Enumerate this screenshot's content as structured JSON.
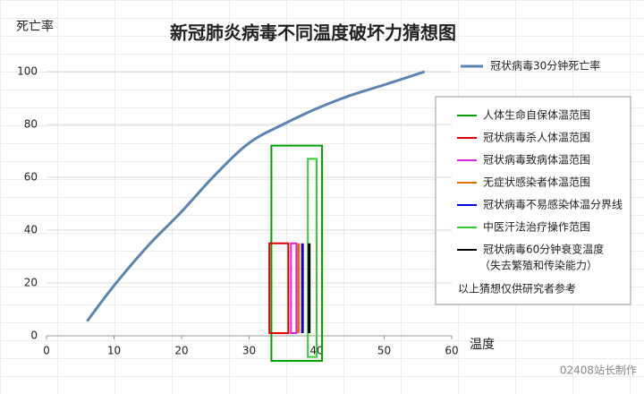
{
  "chart_data": {
    "type": "line",
    "title": "新冠肺炎病毒不同温度破坏力猜想图",
    "y_label": "死亡率",
    "x_label": "温度",
    "watermark": "02408站长制作",
    "note": "以上猜想仅供研究者参考",
    "xlim": [
      0,
      60
    ],
    "xticks": [
      0,
      10,
      20,
      30,
      40,
      50,
      60
    ],
    "ylim": [
      0,
      100
    ],
    "yticks": [
      0,
      20,
      40,
      60,
      80,
      100
    ],
    "grid": true,
    "series": [
      {
        "name": "冠状病毒30分钟死亡率",
        "color": "#5b84b1",
        "x": [
          6,
          10,
          15,
          20,
          25,
          30,
          35,
          40,
          45,
          50,
          56
        ],
        "values": [
          5.5,
          19,
          34,
          47,
          61,
          73,
          80,
          86,
          91,
          95,
          100
        ]
      }
    ],
    "ranges": [
      {
        "name": "人体生命自保体温范围",
        "color": "#00a000",
        "x": [
          33.3,
          40.8
        ],
        "y": [
          -9.5,
          72
        ]
      },
      {
        "name": "冠状病毒杀人体温范围",
        "color": "#e00000",
        "x": [
          33,
          35.8
        ],
        "y": [
          1,
          35
        ]
      },
      {
        "name": "冠状病毒致病体温范围",
        "color": "#e020e0",
        "x": [
          36.2,
          37
        ],
        "y": [
          1,
          35
        ]
      },
      {
        "name": "无症状感染者体温范围",
        "color": "#e07000",
        "x": 37.3,
        "y": [
          1,
          35
        ]
      },
      {
        "name": "冠状病毒不易感染体温分界线",
        "color": "#0000e0",
        "x": 37.9,
        "y": [
          1,
          35
        ]
      },
      {
        "name": "中医汗法治疗操作范围",
        "color": "#30d030",
        "x": [
          38.7,
          40
        ],
        "y": [
          -8,
          67
        ]
      },
      {
        "name": "冠状病毒60分钟衰变温度",
        "name_line2": "（失去繁殖和传染能力）",
        "color": "#000000",
        "x": 38.9,
        "y": [
          1,
          35
        ]
      }
    ]
  }
}
